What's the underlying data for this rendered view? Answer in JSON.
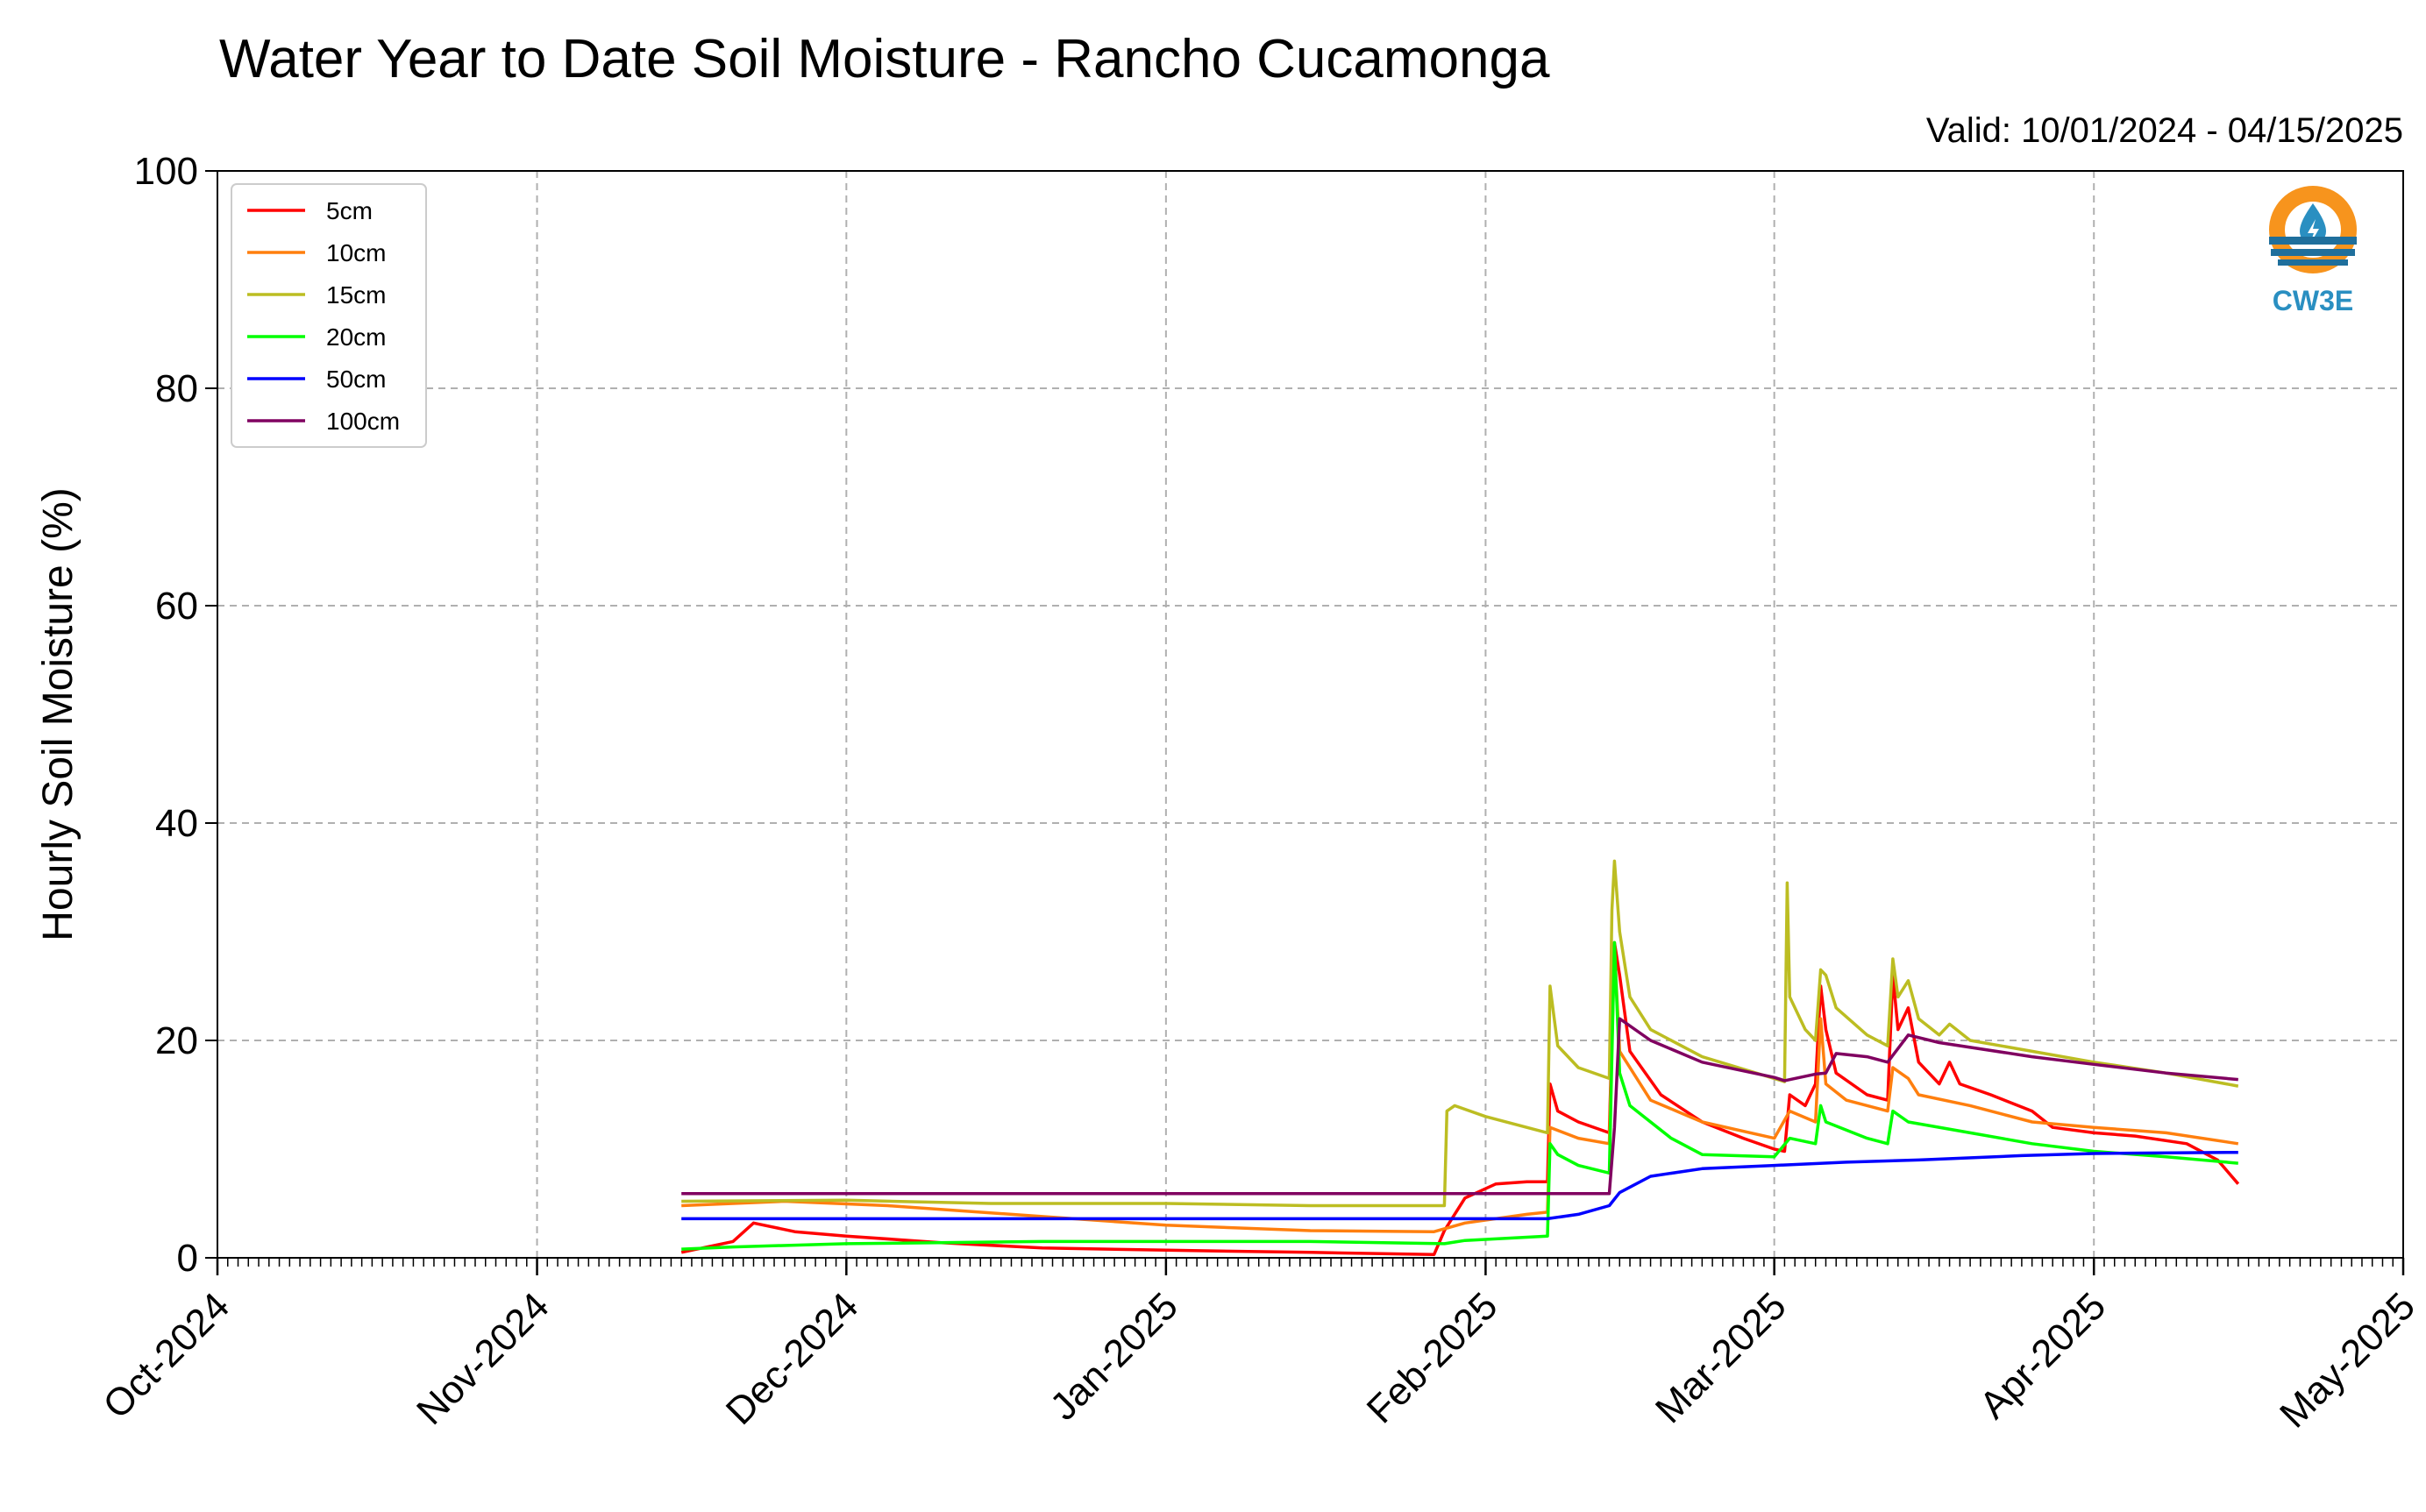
{
  "chart_data": {
    "type": "line",
    "title": "Water Year to Date Soil Moisture - Rancho Cucamonga",
    "subtitle": "Valid: 10/01/2024 - 04/15/2025",
    "xlabel": "",
    "ylabel": "Hourly Soil Moisture (%)",
    "ylim": [
      0,
      100
    ],
    "yticks": [
      "0",
      "20",
      "40",
      "60",
      "80",
      "100"
    ],
    "xlim": [
      "2024-10-01",
      "2025-05-01"
    ],
    "xticks": [
      "Oct-2024",
      "Nov-2024",
      "Dec-2024",
      "Jan-2025",
      "Feb-2025",
      "Mar-2025",
      "Apr-2025",
      "May-2025"
    ],
    "xtick_dates": [
      "2024-10-01",
      "2024-11-01",
      "2024-12-01",
      "2025-01-01",
      "2025-02-01",
      "2025-03-01",
      "2025-04-01",
      "2025-05-01"
    ],
    "grid": true,
    "legend_position": "top-left",
    "logo_text": "CW3E",
    "series": [
      {
        "name": "5cm",
        "color": "#ff0000",
        "points": [
          [
            "2024-11-15",
            0.5
          ],
          [
            "2024-11-20",
            1.5
          ],
          [
            "2024-11-22",
            3.2
          ],
          [
            "2024-11-26",
            2.4
          ],
          [
            "2024-12-01",
            2.0
          ],
          [
            "2024-12-10",
            1.4
          ],
          [
            "2024-12-20",
            0.9
          ],
          [
            "2025-01-01",
            0.7
          ],
          [
            "2025-01-15",
            0.5
          ],
          [
            "2025-01-27",
            0.3
          ],
          [
            "2025-01-28",
            2.5
          ],
          [
            "2025-01-30",
            5.5
          ],
          [
            "2025-02-02",
            6.8
          ],
          [
            "2025-02-05",
            7.0
          ],
          [
            "2025-02-07",
            7.0
          ],
          [
            "2025-02-07T06",
            16.0
          ],
          [
            "2025-02-08",
            13.5
          ],
          [
            "2025-02-10",
            12.5
          ],
          [
            "2025-02-13",
            11.5
          ],
          [
            "2025-02-13T12",
            29.0
          ],
          [
            "2025-02-14",
            26.0
          ],
          [
            "2025-02-15",
            19.0
          ],
          [
            "2025-02-18",
            15.0
          ],
          [
            "2025-02-22",
            12.5
          ],
          [
            "2025-02-26",
            11.0
          ],
          [
            "2025-03-01",
            10.0
          ],
          [
            "2025-03-02",
            9.8
          ],
          [
            "2025-03-02T12",
            15.0
          ],
          [
            "2025-03-04",
            14.0
          ],
          [
            "2025-03-05",
            16.0
          ],
          [
            "2025-03-05T12",
            25.0
          ],
          [
            "2025-03-06",
            21.0
          ],
          [
            "2025-03-07",
            17.0
          ],
          [
            "2025-03-10",
            15.0
          ],
          [
            "2025-03-12",
            14.5
          ],
          [
            "2025-03-12T12",
            26.0
          ],
          [
            "2025-03-13",
            21.0
          ],
          [
            "2025-03-14",
            23.0
          ],
          [
            "2025-03-15",
            18.0
          ],
          [
            "2025-03-17",
            16.0
          ],
          [
            "2025-03-18",
            18.0
          ],
          [
            "2025-03-19",
            16.0
          ],
          [
            "2025-03-22",
            15.0
          ],
          [
            "2025-03-26",
            13.5
          ],
          [
            "2025-03-28",
            12.0
          ],
          [
            "2025-04-01",
            11.5
          ],
          [
            "2025-04-05",
            11.2
          ],
          [
            "2025-04-10",
            10.5
          ],
          [
            "2025-04-13",
            9.0
          ],
          [
            "2025-04-15",
            6.8
          ]
        ]
      },
      {
        "name": "10cm",
        "color": "#ff7f0e",
        "points": [
          [
            "2024-11-15",
            4.8
          ],
          [
            "2024-11-25",
            5.2
          ],
          [
            "2024-12-05",
            4.8
          ],
          [
            "2024-12-20",
            3.8
          ],
          [
            "2025-01-01",
            3.0
          ],
          [
            "2025-01-15",
            2.5
          ],
          [
            "2025-01-27",
            2.4
          ],
          [
            "2025-01-30",
            3.2
          ],
          [
            "2025-02-05",
            4.0
          ],
          [
            "2025-02-07",
            4.2
          ],
          [
            "2025-02-07T06",
            12.0
          ],
          [
            "2025-02-10",
            11.0
          ],
          [
            "2025-02-13",
            10.5
          ],
          [
            "2025-02-13T12",
            28.5
          ],
          [
            "2025-02-14",
            19.0
          ],
          [
            "2025-02-17",
            14.5
          ],
          [
            "2025-02-22",
            12.5
          ],
          [
            "2025-03-01",
            11.0
          ],
          [
            "2025-03-02T12",
            13.5
          ],
          [
            "2025-03-05",
            12.5
          ],
          [
            "2025-03-05T12",
            22.0
          ],
          [
            "2025-03-06",
            16.0
          ],
          [
            "2025-03-08",
            14.5
          ],
          [
            "2025-03-12",
            13.5
          ],
          [
            "2025-03-12T12",
            17.5
          ],
          [
            "2025-03-14",
            16.5
          ],
          [
            "2025-03-15",
            15.0
          ],
          [
            "2025-03-20",
            14.0
          ],
          [
            "2025-03-26",
            12.5
          ],
          [
            "2025-04-01",
            12.0
          ],
          [
            "2025-04-08",
            11.5
          ],
          [
            "2025-04-15",
            10.5
          ]
        ]
      },
      {
        "name": "15cm",
        "color": "#bcbd22",
        "points": [
          [
            "2024-11-15",
            5.2
          ],
          [
            "2024-12-01",
            5.3
          ],
          [
            "2024-12-15",
            5.0
          ],
          [
            "2025-01-01",
            5.0
          ],
          [
            "2025-01-15",
            4.8
          ],
          [
            "2025-01-28",
            4.8
          ],
          [
            "2025-01-28T06",
            13.5
          ],
          [
            "2025-01-29",
            14.0
          ],
          [
            "2025-02-01",
            13.0
          ],
          [
            "2025-02-07",
            11.5
          ],
          [
            "2025-02-07T06",
            25.0
          ],
          [
            "2025-02-08",
            19.5
          ],
          [
            "2025-02-10",
            17.5
          ],
          [
            "2025-02-13",
            16.5
          ],
          [
            "2025-02-13T06",
            32.0
          ],
          [
            "2025-02-13T12",
            36.5
          ],
          [
            "2025-02-14",
            30.0
          ],
          [
            "2025-02-15",
            24.0
          ],
          [
            "2025-02-17",
            21.0
          ],
          [
            "2025-02-22",
            18.5
          ],
          [
            "2025-03-01",
            16.5
          ],
          [
            "2025-03-02",
            16.2
          ],
          [
            "2025-03-02T06",
            34.5
          ],
          [
            "2025-03-02T12",
            24.0
          ],
          [
            "2025-03-04",
            21.0
          ],
          [
            "2025-03-05",
            20.0
          ],
          [
            "2025-03-05T12",
            26.5
          ],
          [
            "2025-03-06",
            26.0
          ],
          [
            "2025-03-07",
            23.0
          ],
          [
            "2025-03-10",
            20.5
          ],
          [
            "2025-03-12",
            19.5
          ],
          [
            "2025-03-12T12",
            27.5
          ],
          [
            "2025-03-13",
            24.0
          ],
          [
            "2025-03-14",
            25.5
          ],
          [
            "2025-03-15",
            22.0
          ],
          [
            "2025-03-17",
            20.5
          ],
          [
            "2025-03-18",
            21.5
          ],
          [
            "2025-03-20",
            20.0
          ],
          [
            "2025-03-26",
            19.0
          ],
          [
            "2025-04-01",
            18.0
          ],
          [
            "2025-04-08",
            17.0
          ],
          [
            "2025-04-15",
            15.8
          ]
        ]
      },
      {
        "name": "20cm",
        "color": "#00ff00",
        "points": [
          [
            "2024-11-15",
            0.8
          ],
          [
            "2024-11-20",
            1.0
          ],
          [
            "2024-12-01",
            1.3
          ],
          [
            "2024-12-20",
            1.5
          ],
          [
            "2025-01-15",
            1.5
          ],
          [
            "2025-01-28",
            1.3
          ],
          [
            "2025-01-30",
            1.6
          ],
          [
            "2025-02-07",
            2.0
          ],
          [
            "2025-02-07T06",
            10.5
          ],
          [
            "2025-02-08",
            9.5
          ],
          [
            "2025-02-10",
            8.5
          ],
          [
            "2025-02-13",
            7.8
          ],
          [
            "2025-02-13T12",
            29.0
          ],
          [
            "2025-02-14",
            17.0
          ],
          [
            "2025-02-15",
            14.0
          ],
          [
            "2025-02-19",
            11.0
          ],
          [
            "2025-02-22",
            9.5
          ],
          [
            "2025-03-01",
            9.3
          ],
          [
            "2025-03-02T12",
            11.0
          ],
          [
            "2025-03-05",
            10.5
          ],
          [
            "2025-03-05T12",
            14.0
          ],
          [
            "2025-03-06",
            12.5
          ],
          [
            "2025-03-10",
            11.0
          ],
          [
            "2025-03-12",
            10.5
          ],
          [
            "2025-03-12T12",
            13.5
          ],
          [
            "2025-03-14",
            12.5
          ],
          [
            "2025-03-20",
            11.5
          ],
          [
            "2025-03-26",
            10.5
          ],
          [
            "2025-04-01",
            9.8
          ],
          [
            "2025-04-08",
            9.3
          ],
          [
            "2025-04-15",
            8.7
          ]
        ]
      },
      {
        "name": "50cm",
        "color": "#0000ff",
        "points": [
          [
            "2024-11-15",
            3.6
          ],
          [
            "2024-12-15",
            3.6
          ],
          [
            "2025-01-15",
            3.6
          ],
          [
            "2025-02-07",
            3.6
          ],
          [
            "2025-02-10",
            4.0
          ],
          [
            "2025-02-13",
            4.8
          ],
          [
            "2025-02-14",
            6.0
          ],
          [
            "2025-02-17",
            7.5
          ],
          [
            "2025-02-22",
            8.2
          ],
          [
            "2025-03-01",
            8.5
          ],
          [
            "2025-03-08",
            8.8
          ],
          [
            "2025-03-15",
            9.0
          ],
          [
            "2025-03-25",
            9.4
          ],
          [
            "2025-04-01",
            9.6
          ],
          [
            "2025-04-15",
            9.7
          ]
        ]
      },
      {
        "name": "100cm",
        "color": "#800060",
        "points": [
          [
            "2024-11-15",
            5.9
          ],
          [
            "2024-12-15",
            5.9
          ],
          [
            "2025-01-15",
            5.9
          ],
          [
            "2025-02-13",
            5.9
          ],
          [
            "2025-02-13T12",
            12.0
          ],
          [
            "2025-02-14",
            22.0
          ],
          [
            "2025-02-17",
            20.0
          ],
          [
            "2025-02-22",
            18.0
          ],
          [
            "2025-03-01",
            16.6
          ],
          [
            "2025-03-02",
            16.3
          ],
          [
            "2025-03-05",
            16.9
          ],
          [
            "2025-03-06",
            17.0
          ],
          [
            "2025-03-07",
            18.8
          ],
          [
            "2025-03-10",
            18.5
          ],
          [
            "2025-03-12",
            18.0
          ],
          [
            "2025-03-14",
            20.5
          ],
          [
            "2025-03-17",
            19.8
          ],
          [
            "2025-03-26",
            18.5
          ],
          [
            "2025-04-01",
            17.8
          ],
          [
            "2025-04-08",
            17.0
          ],
          [
            "2025-04-15",
            16.4
          ]
        ]
      }
    ]
  }
}
